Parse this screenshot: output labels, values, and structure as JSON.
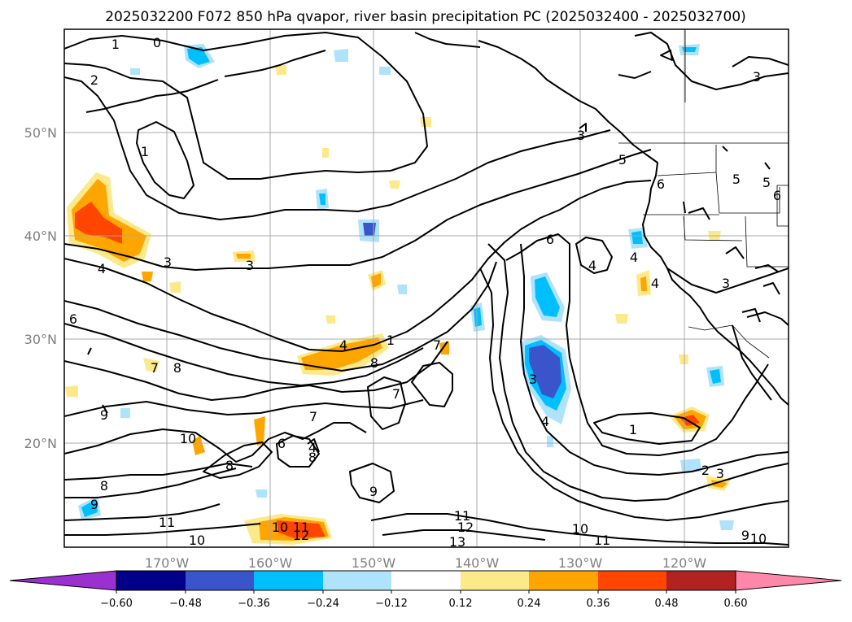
{
  "title": "2025032200 F072 850 hPa qvapor, river basin precipitation PC (2025032400 - 2025032700)",
  "lon_labels": [
    "170°W",
    "160°W",
    "150°W",
    "140°W",
    "130°W",
    "120°W"
  ],
  "lat_labels": [
    "50°N",
    "40°N",
    "30°N",
    "20°N"
  ],
  "colorbar": {
    "tick_labels": [
      "−0.60",
      "−0.48",
      "−0.36",
      "−0.24",
      "−0.12",
      "0.12",
      "0.24",
      "0.36",
      "0.48",
      "0.60"
    ],
    "colors": [
      "#9a30d0",
      "#00008b",
      "#3a55cc",
      "#00bfff",
      "#aee3fb",
      "#ffffff",
      "#fce98a",
      "#ffa500",
      "#ff4500",
      "#b22222",
      "#ff88aa"
    ]
  },
  "contour_labels": {
    "c0": "0",
    "c1a": "1",
    "c1b": "1",
    "c1c": "1",
    "c1d": "1",
    "c2a": "2",
    "c2b": "2",
    "c3a": "3",
    "c3b": "3",
    "c3c": "3",
    "c3d": "3",
    "c3e": "3",
    "c3f": "3",
    "c3g": "3",
    "c4a": "4",
    "c4b": "4",
    "c4c": "4",
    "c4d": "4",
    "c4e": "4",
    "c4f": "4",
    "c4g": "4",
    "c5a": "5",
    "c5b": "5",
    "c5c": "5",
    "c6a": "6",
    "c6b": "6",
    "c6c": "6",
    "c6d": "6",
    "c7a": "7",
    "c7b": "7",
    "c7c": "7",
    "c7d": "7",
    "c8a": "8",
    "c8b": "8",
    "c8c": "8",
    "c8d": "8",
    "c8e": "8",
    "c8f": "8",
    "c9a": "9",
    "c9b": "9",
    "c9c": "9",
    "c9d": "9",
    "c10a": "10",
    "c10b": "10",
    "c10c": "10",
    "c10d": "10",
    "c10e": "10",
    "c11a": "11",
    "c11b": "11",
    "c11c": "11",
    "c11d": "11",
    "c12a": "12",
    "c12b": "12",
    "c13a": "13"
  }
}
